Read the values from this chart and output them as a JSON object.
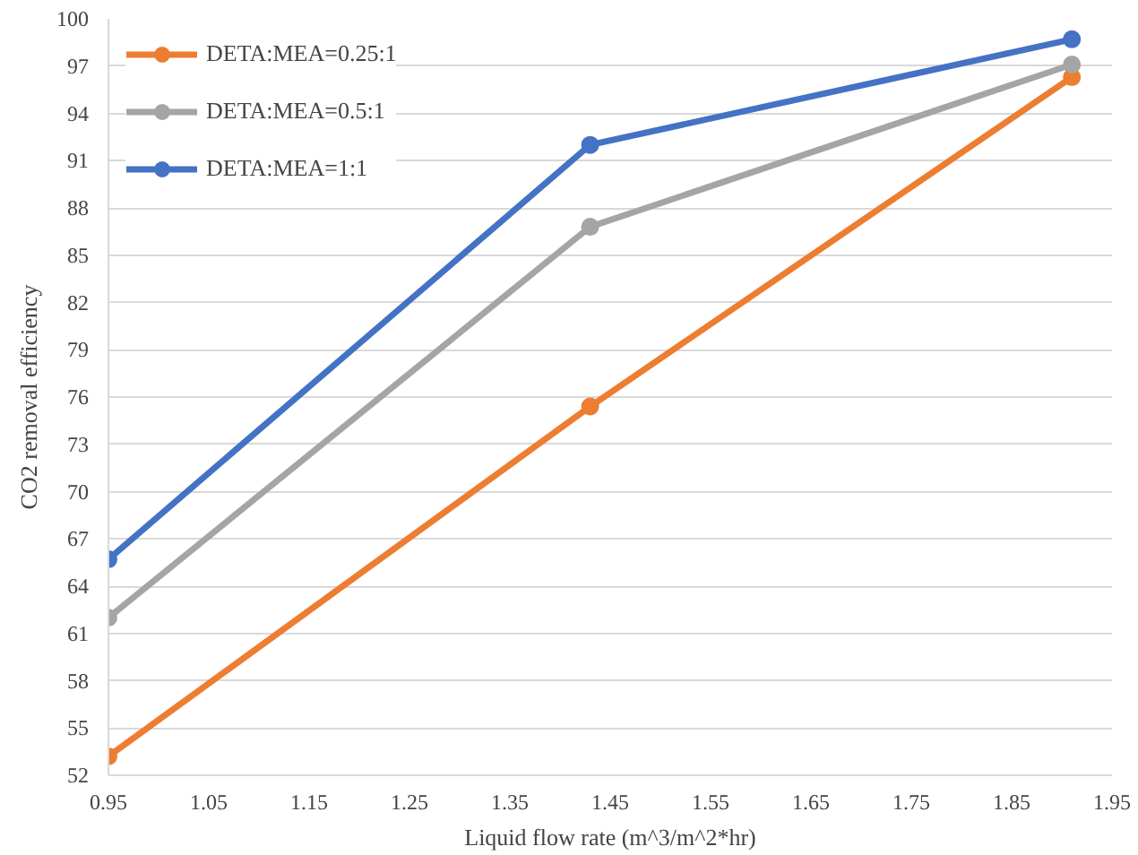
{
  "chart_data": {
    "type": "line",
    "xlabel": "Liquid flow rate (m^3/m^2*hr)",
    "ylabel": "CO2 removal efficiency",
    "x": [
      0.95,
      1.43,
      1.91
    ],
    "series": [
      {
        "name": "DETA:MEA=0.25:1",
        "color": "#ed7d31",
        "values": [
          53.2,
          75.4,
          96.3
        ]
      },
      {
        "name": "DETA:MEA=0.5:1",
        "color": "#a5a5a5",
        "values": [
          62.0,
          86.8,
          97.1
        ]
      },
      {
        "name": "DETA:MEA=1:1",
        "color": "#4472c4",
        "values": [
          65.7,
          92.0,
          98.7
        ]
      }
    ],
    "xlim": [
      0.95,
      1.95
    ],
    "xticks": [
      0.95,
      1.05,
      1.15,
      1.25,
      1.35,
      1.45,
      1.55,
      1.65,
      1.75,
      1.85,
      1.95
    ],
    "ylim": [
      52,
      100
    ],
    "yticks": [
      52,
      55,
      58,
      61,
      64,
      67,
      70,
      73,
      76,
      79,
      82,
      85,
      88,
      91,
      94,
      97,
      100
    ],
    "grid": "y",
    "legend": "top left",
    "marker": "circle",
    "line_style": "solid"
  }
}
